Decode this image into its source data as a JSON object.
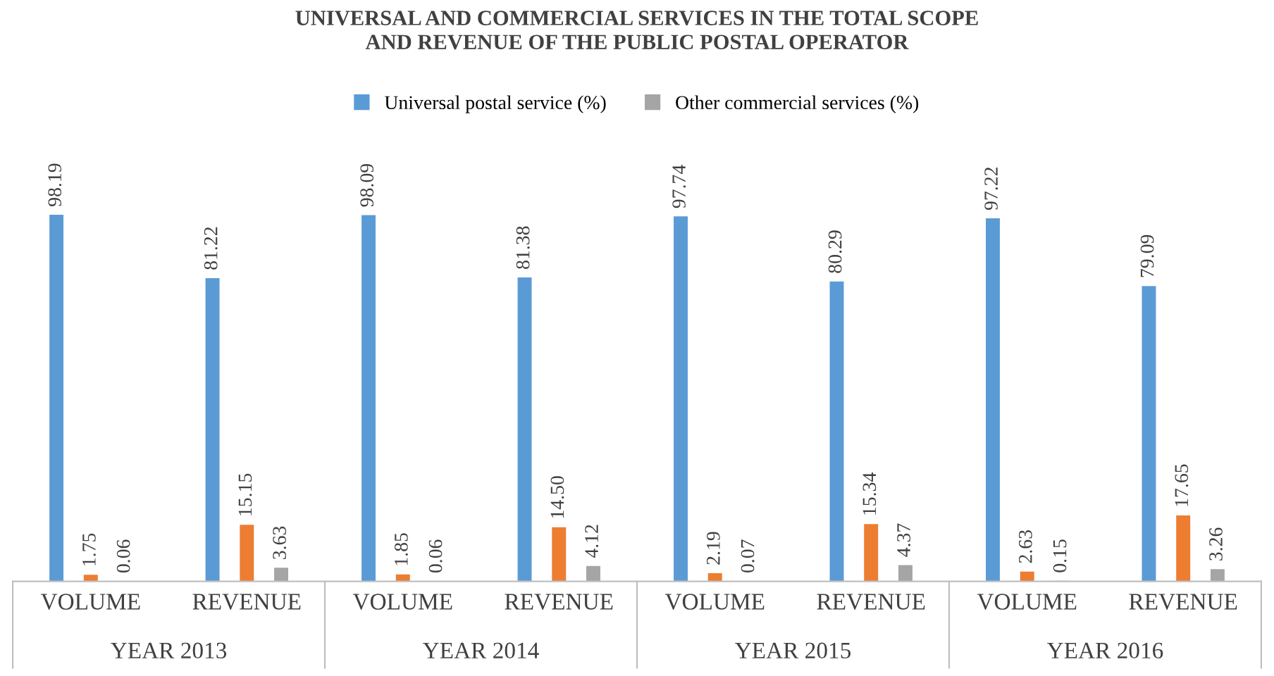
{
  "chart_data": {
    "type": "bar",
    "title": "UNIVERSAL AND COMMERCIAL SERVICES IN THE TOTAL SCOPE\nAND REVENUE OF THE PUBLIC POSTAL OPERATOR",
    "categories": [
      "VOLUME",
      "REVENUE",
      "VOLUME",
      "REVENUE",
      "VOLUME",
      "REVENUE",
      "VOLUME",
      "REVENUE"
    ],
    "annotations": [
      "YEAR 2013",
      "YEAR 2014",
      "YEAR 2015",
      "YEAR 2016"
    ],
    "series": [
      {
        "name": "Universal postal service (%)",
        "color": "#5b9bd5",
        "values": [
          98.19,
          81.22,
          98.09,
          81.38,
          97.74,
          80.29,
          97.22,
          79.09
        ],
        "value_labels": [
          "98.19",
          "81.22",
          "98.09",
          "81.38",
          "97.74",
          "80.29",
          "97.22",
          "79.09"
        ]
      },
      {
        "color": "#ed7d31",
        "values": [
          1.75,
          15.15,
          1.85,
          14.5,
          2.19,
          15.34,
          2.63,
          17.65
        ],
        "value_labels": [
          "1.75",
          "15.15",
          "1.85",
          "14.50",
          "2.19",
          "15.34",
          "2.63",
          "17.65"
        ]
      },
      {
        "name": "Other commercial services (%)",
        "color": "#a5a5a5",
        "values": [
          0.06,
          3.63,
          0.06,
          4.12,
          0.07,
          4.37,
          0.15,
          3.26
        ],
        "value_labels": [
          "0.06",
          "3.63",
          "0.06",
          "4.12",
          "0.07",
          "4.37",
          "0.15",
          "3.26"
        ]
      }
    ],
    "legend": "top",
    "grid": false
  }
}
